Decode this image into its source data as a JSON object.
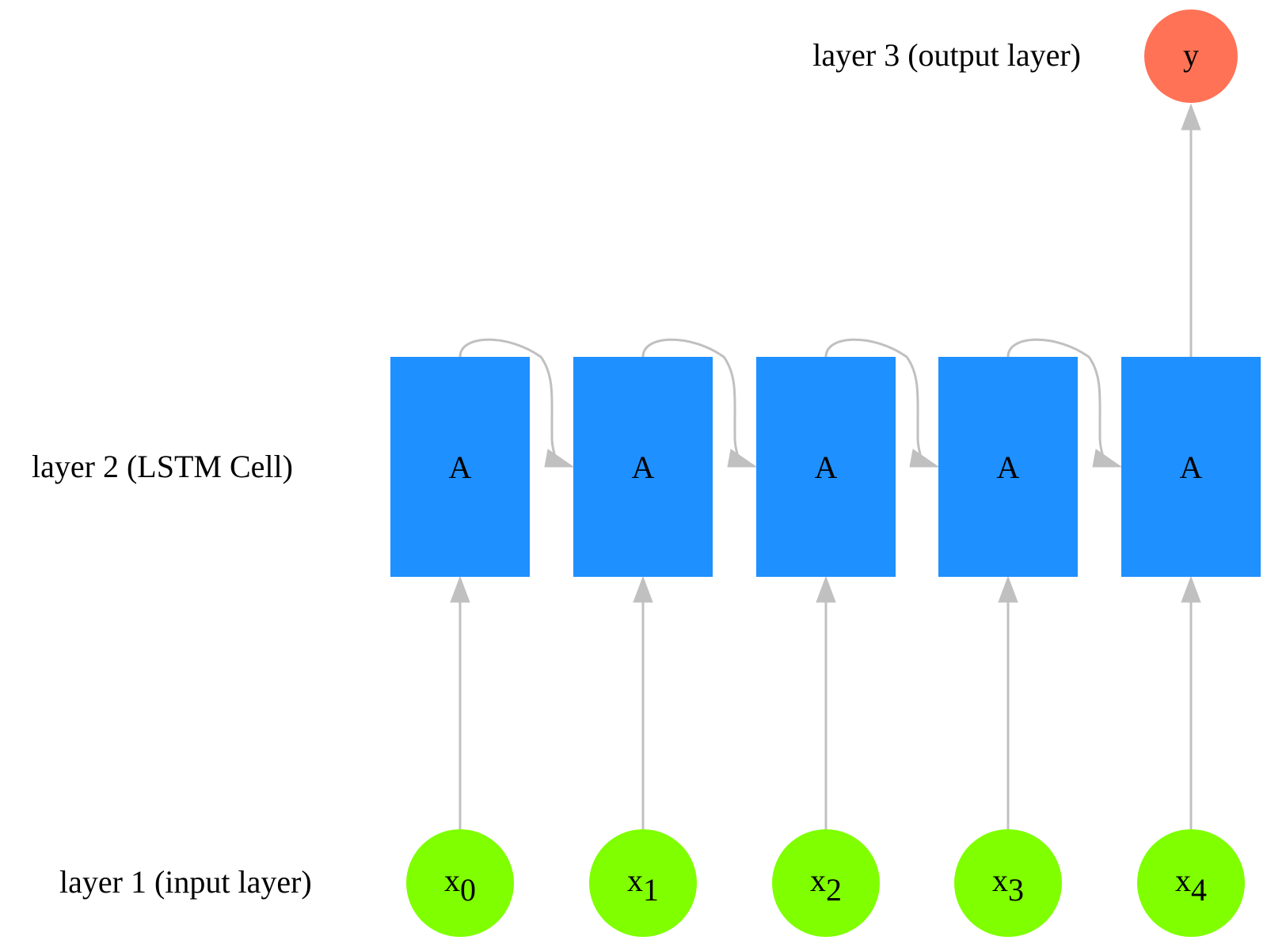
{
  "layers": {
    "input": "layer 1 (input layer)",
    "hidden": "layer 2 (LSTM Cell)",
    "output": "layer 3 (output layer)"
  },
  "inputs": [
    {
      "base": "x",
      "sub": "0"
    },
    {
      "base": "x",
      "sub": "1"
    },
    {
      "base": "x",
      "sub": "2"
    },
    {
      "base": "x",
      "sub": "3"
    },
    {
      "base": "x",
      "sub": "4"
    }
  ],
  "cells": [
    "A",
    "A",
    "A",
    "A",
    "A"
  ],
  "output": "y",
  "colors": {
    "input_node": "#7fff00",
    "cell_node": "#1e90ff",
    "output_node": "#ff7256",
    "edge": "#c0c0c0"
  }
}
